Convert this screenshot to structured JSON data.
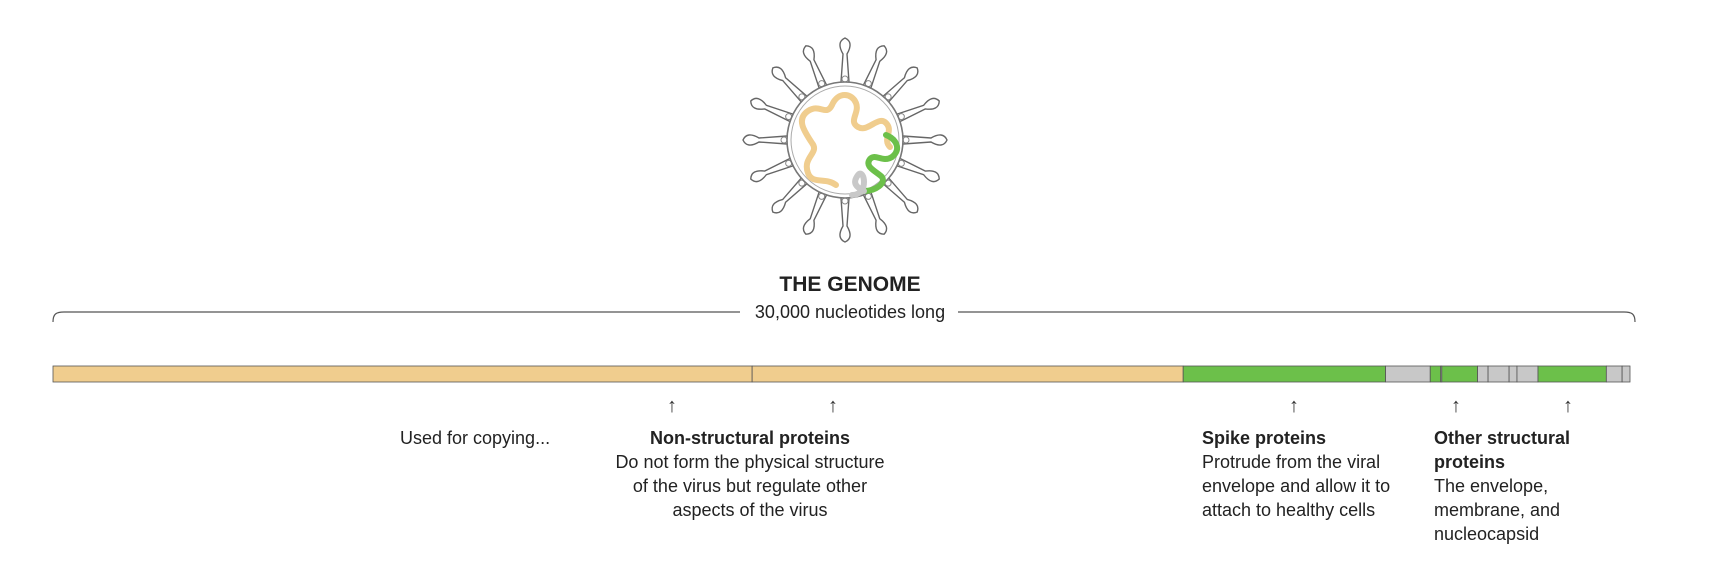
{
  "title": "THE GENOME",
  "subtitle": "30,000 nucleotides long",
  "colors": {
    "non_structural": "#f0cd8e",
    "structural": "#6cc04a",
    "other": "#c8c8c8",
    "outline": "#555555"
  },
  "genome_segments": [
    {
      "role": "non_structural",
      "start": 0,
      "end": 13300
    },
    {
      "role": "non_structural",
      "start": 13300,
      "end": 21500
    },
    {
      "role": "structural",
      "start": 21500,
      "end": 25350
    },
    {
      "role": "other",
      "start": 25350,
      "end": 26200
    },
    {
      "role": "structural",
      "start": 26200,
      "end": 26400
    },
    {
      "role": "other",
      "start": 26400,
      "end": 26420
    },
    {
      "role": "structural",
      "start": 26420,
      "end": 27100
    },
    {
      "role": "other",
      "start": 27100,
      "end": 27300
    },
    {
      "role": "other",
      "start": 27300,
      "end": 27700
    },
    {
      "role": "other",
      "start": 27700,
      "end": 27850
    },
    {
      "role": "other",
      "start": 27850,
      "end": 28250
    },
    {
      "role": "structural",
      "start": 28250,
      "end": 29550
    },
    {
      "role": "other",
      "start": 29550,
      "end": 29850
    },
    {
      "role": "other",
      "start": 29850,
      "end": 30000
    }
  ],
  "annotations": {
    "copying": {
      "label": "Used for copying..."
    },
    "non_structural": {
      "heading": "Non-structural proteins",
      "lines": [
        "Do not form the physical structure",
        "of the virus but regulate other",
        "aspects of the virus"
      ]
    },
    "spike": {
      "heading": "Spike proteins",
      "lines": [
        "Protrude from the viral",
        "envelope and allow it to",
        "attach to healthy cells"
      ]
    },
    "other_structural": {
      "heading_lines": [
        "Other structural",
        "proteins"
      ],
      "lines": [
        "The envelope,",
        "membrane, and",
        "nucleocapsid"
      ]
    }
  }
}
